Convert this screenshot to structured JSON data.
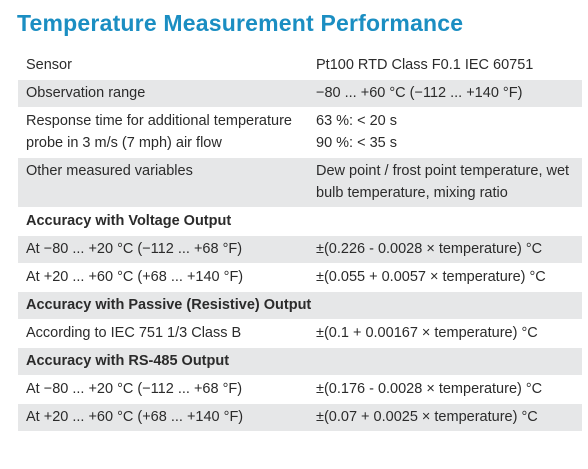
{
  "title": "Temperature Measurement Performance",
  "table": {
    "rows": [
      [
        "Sensor",
        "Pt100 RTD Class F0.1 IEC 60751"
      ],
      [
        "Observation range",
        "−80 ... +60 °C (−112 ... +140 °F)"
      ],
      [
        "Response time for additional temperature probe in 3 m/s (7 mph) air flow",
        [
          "63 %: < 20 s",
          "90 %: < 35 s"
        ]
      ],
      [
        "Other measured variables",
        "Dew point / frost point temperature, wet bulb temperature, mixing ratio"
      ],
      [
        "Accuracy with Voltage Output"
      ],
      [
        "At −80 ... +20 °C (−112 ... +68 °F)",
        "±(0.226 - 0.0028 × temperature) °C"
      ],
      [
        "At +20 ... +60 °C (+68 ... +140 °F)",
        "±(0.055 + 0.0057 × temperature) °C"
      ],
      [
        "Accuracy with Passive (Resistive) Output"
      ],
      [
        "According to IEC 751 1/3 Class B",
        "±(0.1 + 0.00167 × temperature) °C"
      ],
      [
        "Accuracy with RS-485 Output"
      ],
      [
        "At −80 ... +20 °C (−112 ... +68 °F)",
        "±(0.176 - 0.0028 × temperature) °C"
      ],
      [
        "At +20 ... +60 °C (+68 ... +140 °F)",
        "±(0.07 + 0.0025 × temperature) °C"
      ]
    ]
  }
}
